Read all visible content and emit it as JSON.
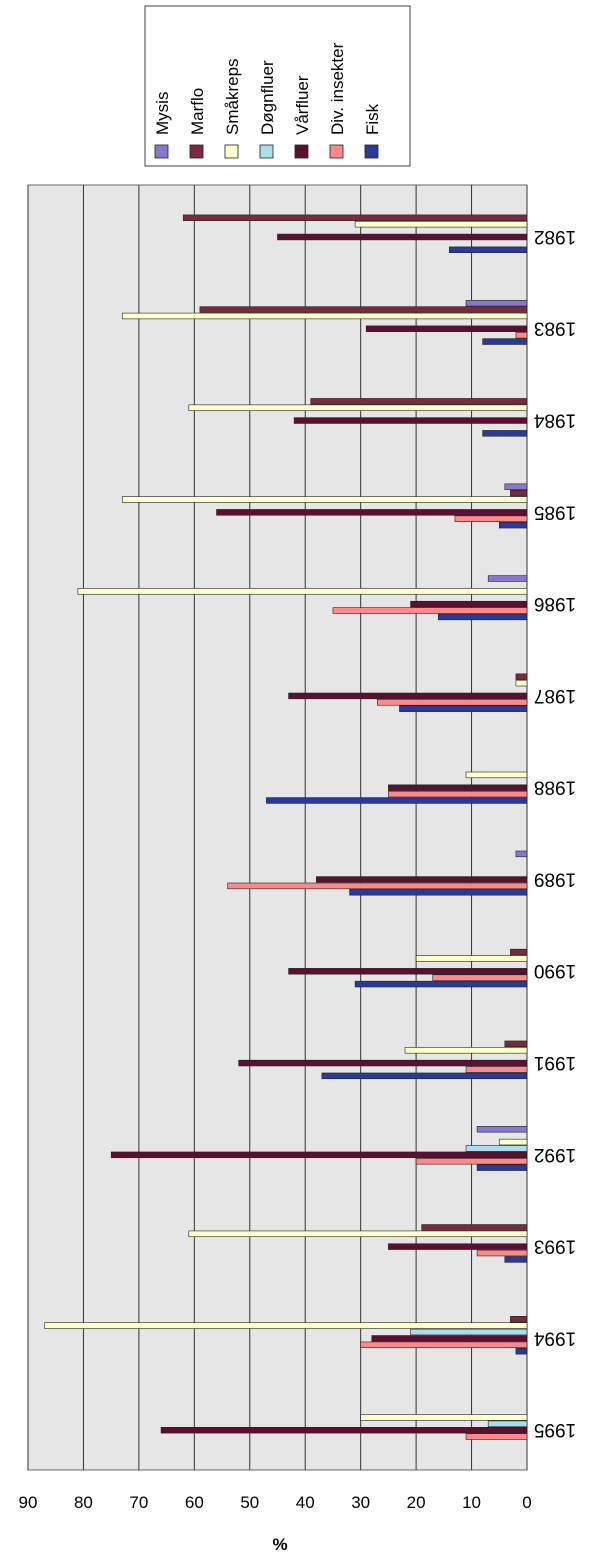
{
  "chart_data": {
    "type": "bar",
    "orientation": "horizontal",
    "xlabel": "%",
    "xlim": [
      0,
      90
    ],
    "xticks": [
      "90",
      "80",
      "70",
      "60",
      "50",
      "40",
      "30",
      "20",
      "10",
      "0"
    ],
    "grid": true,
    "legend_position": "top-right",
    "categories": [
      "1982",
      "1983",
      "1984",
      "1985",
      "1986",
      "1987",
      "1988",
      "1989",
      "1990",
      "1991",
      "1992",
      "1993",
      "1994",
      "1995"
    ],
    "series": [
      {
        "name": "Mysis",
        "color": "#8877cc",
        "values": [
          0,
          11,
          0,
          4,
          7,
          0,
          0,
          2,
          0,
          0,
          9,
          0,
          0,
          0
        ]
      },
      {
        "name": "Marflo",
        "color": "#7a2a3a",
        "values": [
          62,
          59,
          39,
          3,
          0,
          2,
          0,
          0,
          3,
          4,
          0,
          19,
          3,
          0
        ]
      },
      {
        "name": "Småkreps",
        "color": "#ffffcc",
        "values": [
          31,
          73,
          61,
          73,
          81,
          2,
          11,
          0,
          20,
          22,
          5,
          61,
          87,
          30
        ]
      },
      {
        "name": "Døgnfluer",
        "color": "#aaddee",
        "values": [
          0,
          0,
          0,
          0,
          0,
          0,
          0,
          0,
          0,
          0,
          11,
          0,
          21,
          7
        ]
      },
      {
        "name": "Vårfluer",
        "color": "#5a1030",
        "values": [
          45,
          29,
          42,
          56,
          21,
          43,
          25,
          38,
          43,
          52,
          75,
          25,
          28,
          66
        ]
      },
      {
        "name": "Div. insekter",
        "color": "#ff8888",
        "values": [
          0,
          2,
          0,
          13,
          35,
          27,
          25,
          54,
          17,
          11,
          20,
          9,
          30,
          11
        ]
      },
      {
        "name": "Fisk",
        "color": "#2a3a9a",
        "values": [
          14,
          8,
          8,
          5,
          16,
          23,
          47,
          32,
          31,
          37,
          9,
          4,
          2,
          0
        ]
      }
    ]
  }
}
